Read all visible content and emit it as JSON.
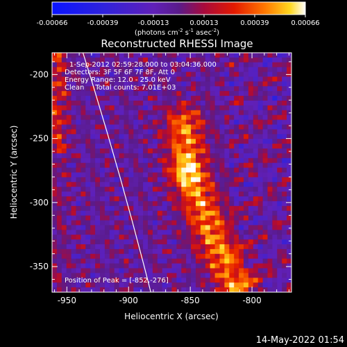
{
  "colorbar": {
    "tick_labels": [
      "-0.00066",
      "-0.00039",
      "-0.00013",
      "0.00013",
      "0.00039",
      "0.00066"
    ],
    "units_parts": [
      "(photons cm",
      "-2",
      " s",
      "-1",
      " asec",
      "-2",
      ")"
    ],
    "range": [
      -0.00066,
      0.00066
    ]
  },
  "chart_data": {
    "type": "heatmap",
    "title": "Reconstructed RHESSI Image",
    "xlabel": "Heliocentric X (arcsec)",
    "ylabel": "Heliocentric Y (arcsec)",
    "xlim": [
      -962,
      -768
    ],
    "ylim": [
      -370,
      -183
    ],
    "x_ticks": [
      -950,
      -900,
      -850,
      -800
    ],
    "y_ticks": [
      -200,
      -250,
      -300,
      -350
    ],
    "info_lines": [
      "1-Sep-2012 02:59:28.000 to 03:04:36.000",
      "Detectors: 3F 5F 6F 7F 8F, Att 0",
      "Energy Range: 12.0 - 25.0 keV",
      "Clean     Total counts: 7.01E+03"
    ],
    "peak_label": "Position of Peak = [-852,-276]",
    "peak_position": [
      -852,
      -276
    ],
    "limb_line": [
      [
        -937,
        -183
      ],
      [
        -882,
        -370
      ]
    ],
    "flux_ridge": [
      [
        -855,
        -240
      ],
      [
        -852,
        -276
      ],
      [
        -842,
        -300
      ],
      [
        -830,
        -330
      ],
      [
        -812,
        -365
      ]
    ]
  },
  "footer": {
    "timestamp": "14-May-2022 01:54"
  }
}
